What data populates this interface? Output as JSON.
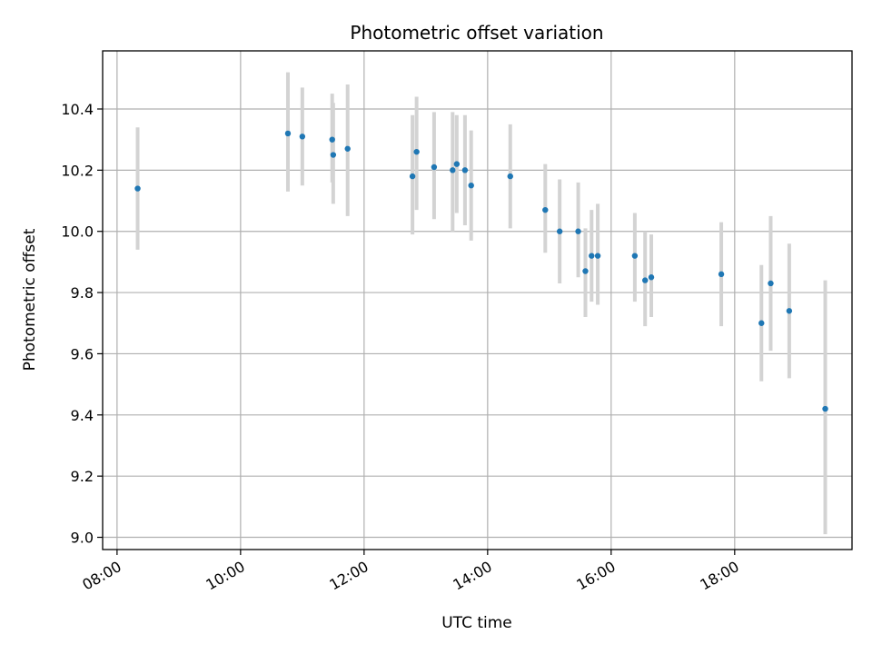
{
  "chart_data": {
    "type": "scatter",
    "title": "Photometric offset variation",
    "xlabel": "UTC time",
    "ylabel": "Photometric offset",
    "x_unit": "time of day (UTC)",
    "xlim": [
      "07:46",
      "19:54"
    ],
    "ylim": [
      8.96,
      10.59
    ],
    "x_ticks": [
      "08:00",
      "10:00",
      "12:00",
      "14:00",
      "16:00",
      "18:00"
    ],
    "y_ticks": [
      9.0,
      9.2,
      9.4,
      9.6,
      9.8,
      10.0,
      10.2,
      10.4
    ],
    "grid": true,
    "colors": {
      "marker": "#1f77b4",
      "errorbar": "#d3d3d3",
      "grid": "#b0b0b0"
    },
    "points": [
      {
        "t": "08:20",
        "y": 10.14,
        "lo": 9.94,
        "hi": 10.34
      },
      {
        "t": "10:46",
        "y": 10.32,
        "lo": 10.13,
        "hi": 10.52
      },
      {
        "t": "11:00",
        "y": 10.31,
        "lo": 10.15,
        "hi": 10.47
      },
      {
        "t": "11:29",
        "y": 10.3,
        "lo": 10.16,
        "hi": 10.45
      },
      {
        "t": "11:30",
        "y": 10.25,
        "lo": 10.09,
        "hi": 10.42
      },
      {
        "t": "11:44",
        "y": 10.27,
        "lo": 10.05,
        "hi": 10.48
      },
      {
        "t": "12:47",
        "y": 10.18,
        "lo": 9.99,
        "hi": 10.38
      },
      {
        "t": "12:51",
        "y": 10.26,
        "lo": 10.07,
        "hi": 10.44
      },
      {
        "t": "13:08",
        "y": 10.21,
        "lo": 10.04,
        "hi": 10.39
      },
      {
        "t": "13:26",
        "y": 10.2,
        "lo": 10.0,
        "hi": 10.39
      },
      {
        "t": "13:30",
        "y": 10.22,
        "lo": 10.06,
        "hi": 10.38
      },
      {
        "t": "13:38",
        "y": 10.2,
        "lo": 10.02,
        "hi": 10.38
      },
      {
        "t": "13:44",
        "y": 10.15,
        "lo": 9.97,
        "hi": 10.33
      },
      {
        "t": "14:22",
        "y": 10.18,
        "lo": 10.01,
        "hi": 10.35
      },
      {
        "t": "14:56",
        "y": 10.07,
        "lo": 9.93,
        "hi": 10.22
      },
      {
        "t": "15:10",
        "y": 10.0,
        "lo": 9.83,
        "hi": 10.17
      },
      {
        "t": "15:28",
        "y": 10.0,
        "lo": 9.85,
        "hi": 10.16
      },
      {
        "t": "15:35",
        "y": 9.87,
        "lo": 9.72,
        "hi": 10.01
      },
      {
        "t": "15:41",
        "y": 9.92,
        "lo": 9.77,
        "hi": 10.07
      },
      {
        "t": "15:47",
        "y": 9.92,
        "lo": 9.76,
        "hi": 10.09
      },
      {
        "t": "16:23",
        "y": 9.92,
        "lo": 9.77,
        "hi": 10.06
      },
      {
        "t": "16:33",
        "y": 9.84,
        "lo": 9.69,
        "hi": 10.0
      },
      {
        "t": "16:39",
        "y": 9.85,
        "lo": 9.72,
        "hi": 9.99
      },
      {
        "t": "17:47",
        "y": 9.86,
        "lo": 9.69,
        "hi": 10.03
      },
      {
        "t": "18:26",
        "y": 9.7,
        "lo": 9.51,
        "hi": 9.89
      },
      {
        "t": "18:35",
        "y": 9.83,
        "lo": 9.61,
        "hi": 10.05
      },
      {
        "t": "18:53",
        "y": 9.74,
        "lo": 9.52,
        "hi": 9.96
      },
      {
        "t": "19:28",
        "y": 9.42,
        "lo": 9.01,
        "hi": 9.84
      }
    ]
  }
}
